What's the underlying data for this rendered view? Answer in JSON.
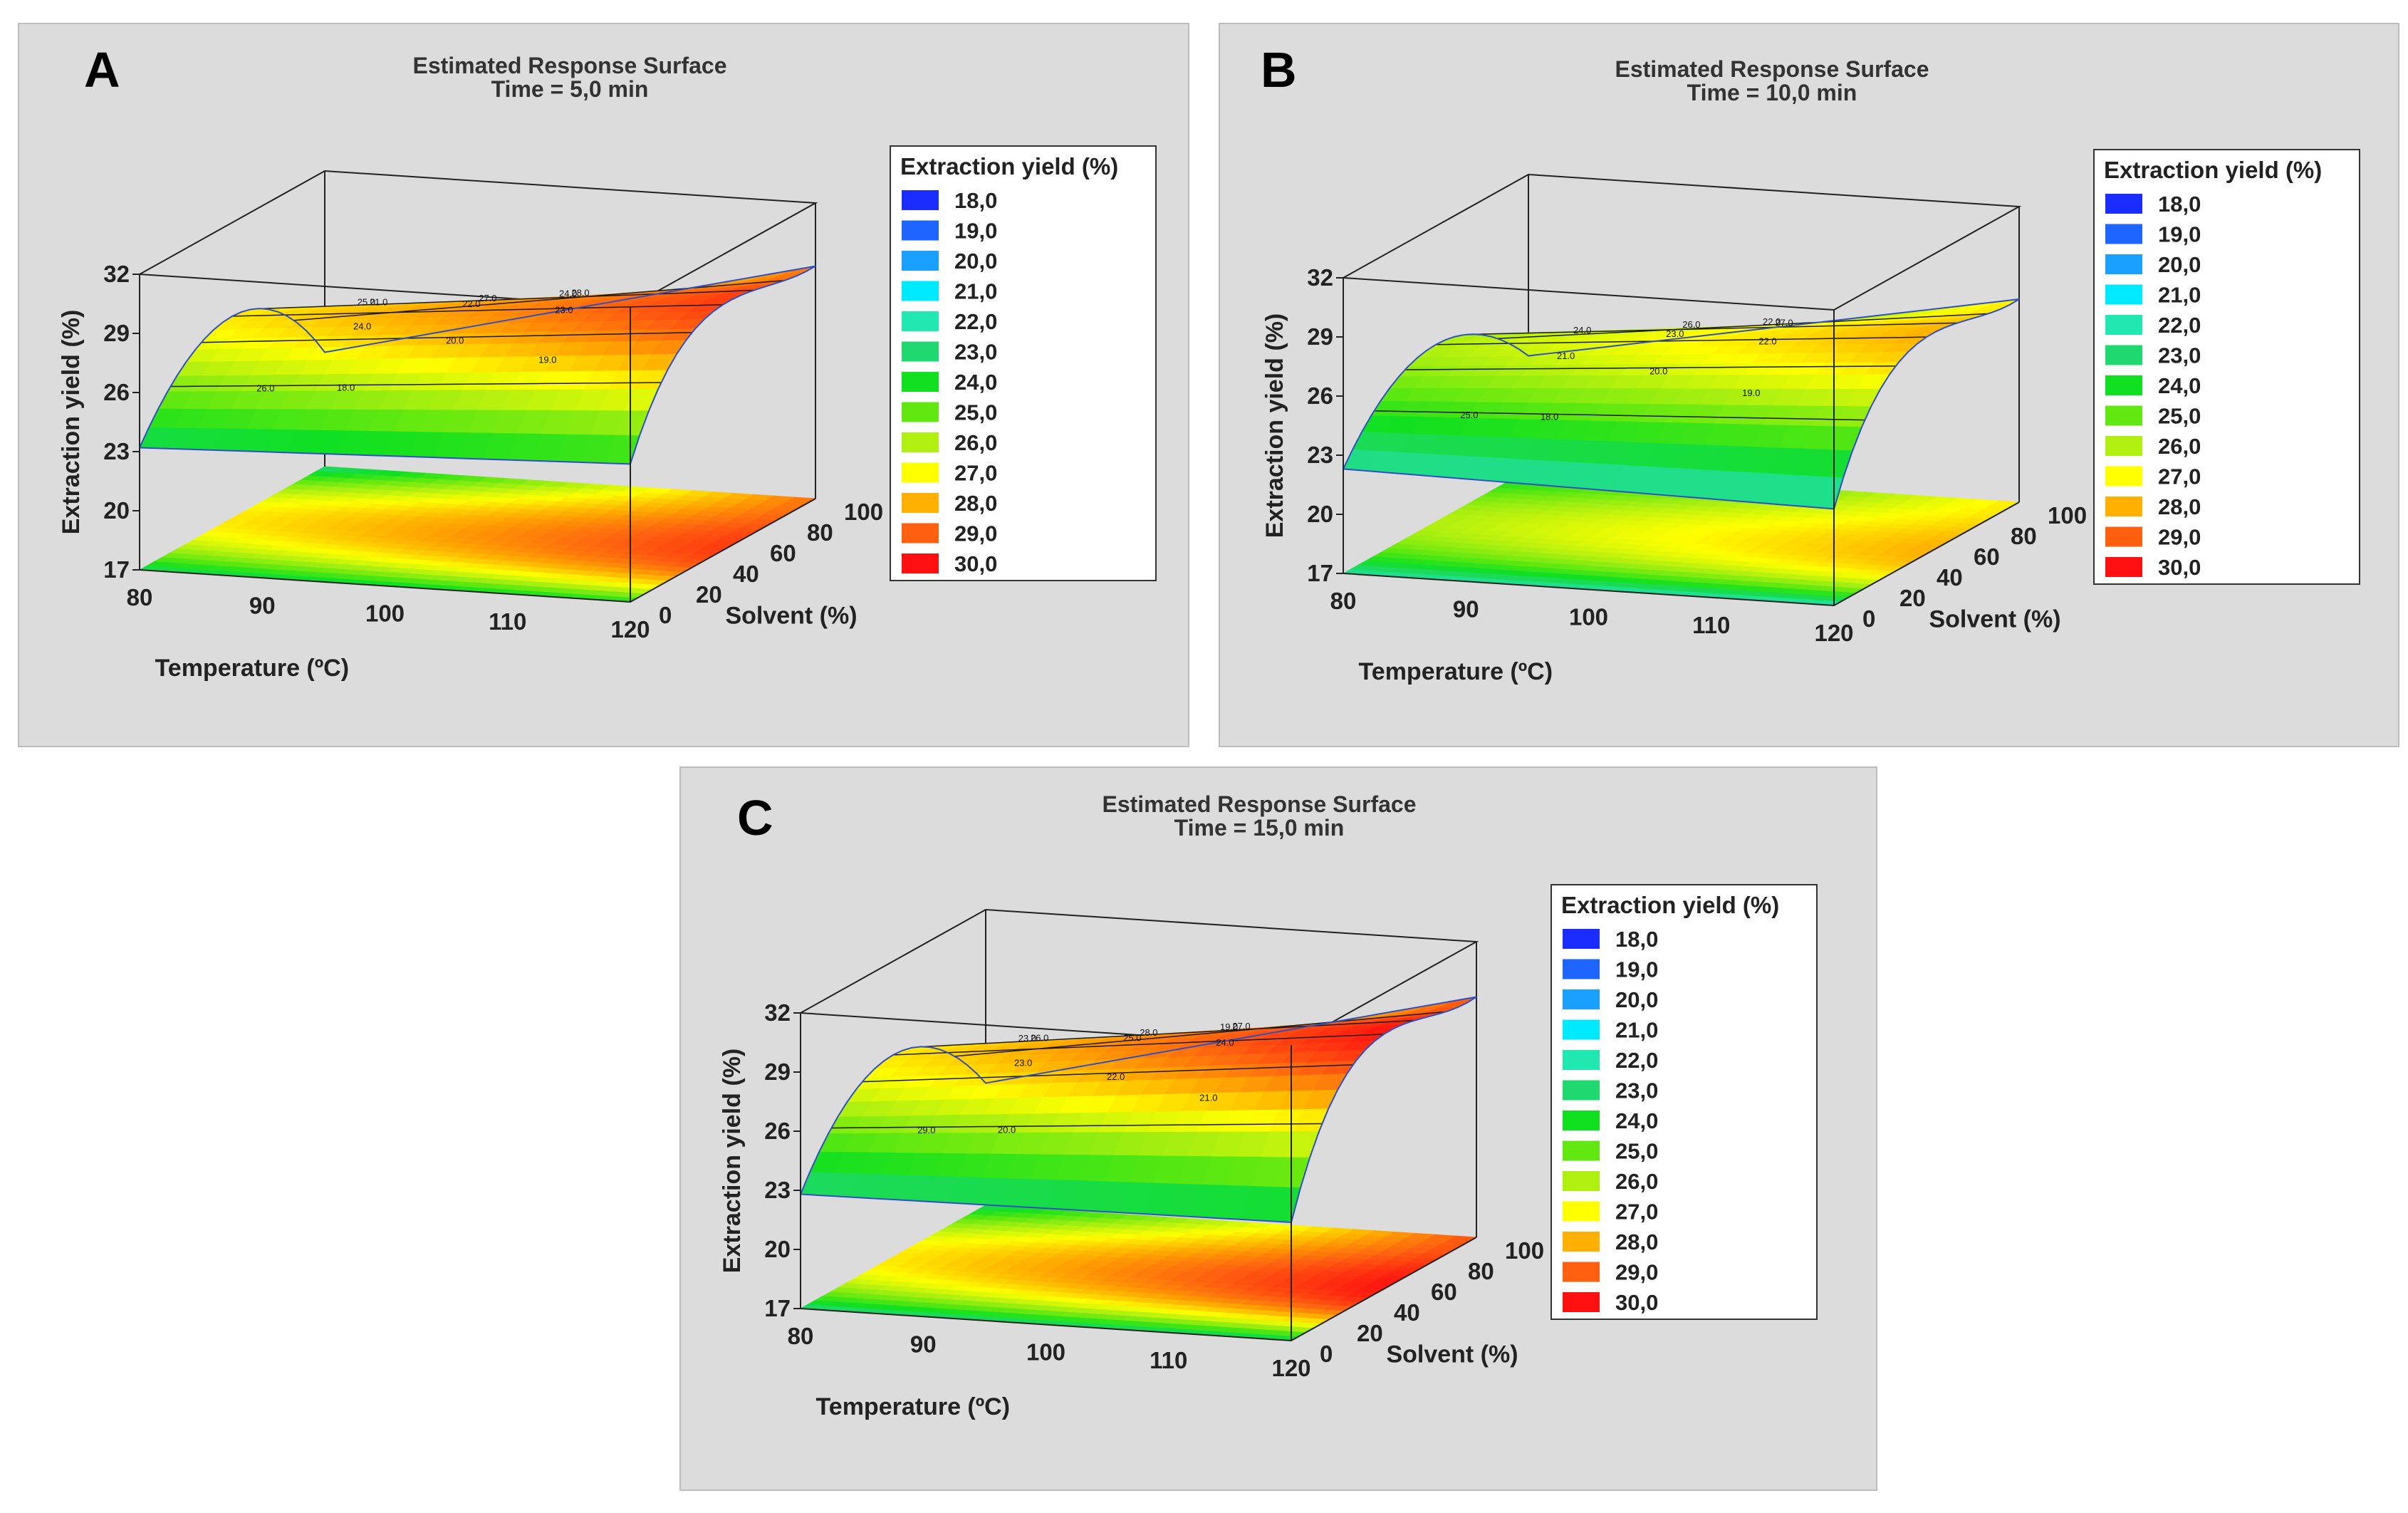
{
  "chart_data": [
    {
      "type": "surface3d",
      "panel_letter": "A",
      "title": "Estimated Response Surface",
      "subtitle": "Time = 5,0 min",
      "xlabel": "Temperature (ºC)",
      "ylabel": "Solvent (%)",
      "zlabel": "Extraction yield (%)",
      "xticks": [
        "80",
        "90",
        "100",
        "110",
        "120"
      ],
      "yticks": [
        "0",
        "20",
        "40",
        "60",
        "80",
        "100"
      ],
      "zticks": [
        "17",
        "20",
        "23",
        "26",
        "29",
        "32"
      ],
      "xlim": [
        80,
        120
      ],
      "ylim": [
        0,
        100
      ],
      "zlim": [
        17,
        32
      ],
      "surface_corners": {
        "t80_s0": 23.2,
        "t80_s100": 22.8,
        "t120_s0": 24.0,
        "t120_s100": 28.8,
        "t80_peak": 28.0,
        "t120_peak": 30.0
      },
      "contour_labels": [
        "26.0",
        "27.0",
        "28.0",
        "21.0",
        "22.0",
        "23.0",
        "24.0",
        "20.0",
        "19.0",
        "18.0",
        "24.0",
        "25.0"
      ],
      "legend": {
        "title": "Extraction yield (%)",
        "levels": [
          "18,0",
          "19,0",
          "20,0",
          "21,0",
          "22,0",
          "23,0",
          "24,0",
          "25,0",
          "26,0",
          "27,0",
          "28,0",
          "29,0",
          "30,0"
        ]
      }
    },
    {
      "type": "surface3d",
      "panel_letter": "B",
      "title": "Estimated Response Surface",
      "subtitle": "Time = 10,0 min",
      "xlabel": "Temperature (ºC)",
      "ylabel": "Solvent (%)",
      "zlabel": "Extraction yield (%)",
      "xticks": [
        "80",
        "90",
        "100",
        "110",
        "120"
      ],
      "yticks": [
        "0",
        "20",
        "40",
        "60",
        "80",
        "100"
      ],
      "zticks": [
        "17",
        "20",
        "23",
        "26",
        "29",
        "32"
      ],
      "xlim": [
        80,
        120
      ],
      "ylim": [
        0,
        100
      ],
      "zlim": [
        17,
        32
      ],
      "surface_corners": {
        "t80_s0": 22.3,
        "t80_s100": 22.8,
        "t120_s0": 21.9,
        "t120_s100": 27.3,
        "t80_peak": 26.6,
        "t120_peak": 28.6
      },
      "contour_labels": [
        "25.0",
        "26.0",
        "27.0",
        "24.0",
        "23.0",
        "22.0",
        "21.0",
        "20.0",
        "19.0",
        "18.0",
        "22.0"
      ],
      "legend": {
        "title": "Extraction yield (%)",
        "levels": [
          "18,0",
          "19,0",
          "20,0",
          "21,0",
          "22,0",
          "23,0",
          "24,0",
          "25,0",
          "26,0",
          "27,0",
          "28,0",
          "29,0",
          "30,0"
        ]
      }
    },
    {
      "type": "surface3d",
      "panel_letter": "C",
      "title": "Estimated Response Surface",
      "subtitle": "Time = 15,0 min",
      "xlabel": "Temperature (ºC)",
      "ylabel": "Solvent (%)",
      "zlabel": "Extraction yield (%)",
      "xticks": [
        "80",
        "90",
        "100",
        "110",
        "120"
      ],
      "yticks": [
        "0",
        "20",
        "40",
        "60",
        "80",
        "100"
      ],
      "zticks": [
        "17",
        "20",
        "23",
        "26",
        "29",
        "32"
      ],
      "xlim": [
        80,
        120
      ],
      "ylim": [
        0,
        100
      ],
      "zlim": [
        17,
        32
      ],
      "surface_corners": {
        "t80_s0": 22.8,
        "t80_s100": 23.2,
        "t120_s0": 23.0,
        "t120_s100": 29.2,
        "t80_peak": 28.0,
        "t120_peak": 30.6
      },
      "contour_labels": [
        "29.0",
        "28.0",
        "27.0",
        "26.0",
        "25.0",
        "24.0",
        "23.0",
        "22.0",
        "21.0",
        "20.0",
        "19.0",
        "23.0"
      ],
      "legend": {
        "title": "Extraction yield (%)",
        "levels": [
          "18,0",
          "19,0",
          "20,0",
          "21,0",
          "22,0",
          "23,0",
          "24,0",
          "25,0",
          "26,0",
          "27,0",
          "28,0",
          "29,0",
          "30,0"
        ]
      }
    }
  ],
  "colors": {
    "panel_bg": "#dcdcdc",
    "legend_swatches": [
      "#1a2cff",
      "#1e64ff",
      "#1aa0ff",
      "#00eaff",
      "#20e8b0",
      "#20d870",
      "#10e020",
      "#60e810",
      "#b0f010",
      "#ffff00",
      "#ffb000",
      "#ff6010",
      "#ff1010"
    ]
  }
}
